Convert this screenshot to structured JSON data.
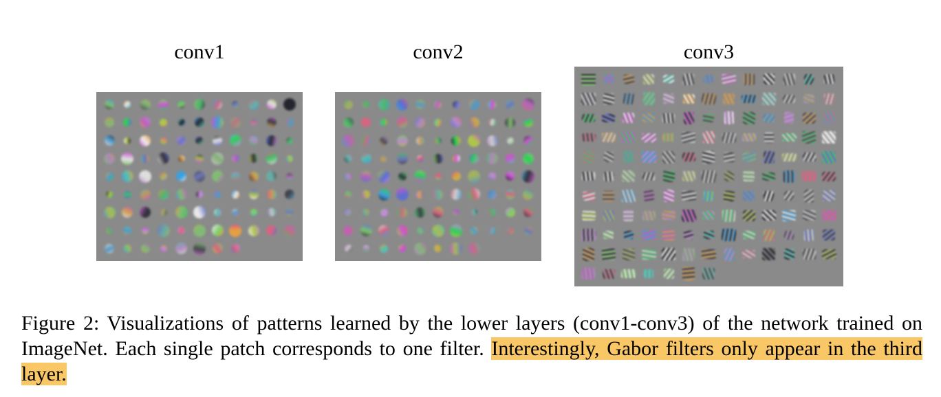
{
  "panels": [
    {
      "id": "conv1",
      "title": "conv1",
      "rows": 9,
      "cols": 11,
      "patches": 96,
      "style": "blob"
    },
    {
      "id": "conv2",
      "title": "conv2",
      "rows": 9,
      "cols": 11,
      "patches": 96,
      "style": "blob"
    },
    {
      "id": "conv3",
      "title": "conv3",
      "rows": 11,
      "cols": 13,
      "patches": 137,
      "style": "gabor"
    }
  ],
  "caption": {
    "plain": "Figure 2: Visualizations of patterns learned by the lower layers (conv1-conv3) of the network trained on ImageNet. Each single patch corresponds to one filter. ",
    "highlighted": "Interestingly, Gabor filters only appear in the third layer."
  },
  "colors": {
    "panel_background": "#8a8a8a",
    "highlight": "#f9c766"
  }
}
